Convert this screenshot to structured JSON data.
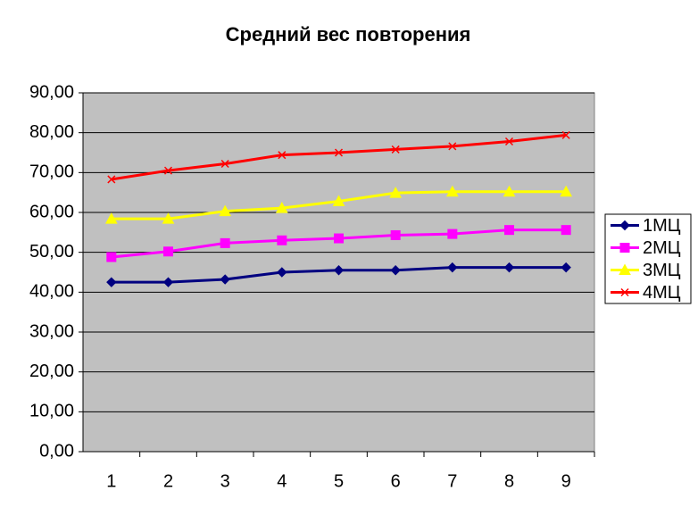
{
  "chart_data": {
    "type": "line",
    "title": "Средний вес повторения",
    "categories": [
      "1",
      "2",
      "3",
      "4",
      "5",
      "6",
      "7",
      "8",
      "9"
    ],
    "series": [
      {
        "name": "1МЦ",
        "color": "#000080",
        "marker": "diamond",
        "values": [
          42.5,
          42.5,
          43.2,
          45.0,
          45.5,
          45.5,
          46.2,
          46.2,
          46.2
        ]
      },
      {
        "name": "2МЦ",
        "color": "#FF00FF",
        "marker": "square",
        "values": [
          48.8,
          50.2,
          52.3,
          53.0,
          53.5,
          54.3,
          54.6,
          55.6,
          55.6
        ]
      },
      {
        "name": "3МЦ",
        "color": "#FFFF00",
        "marker": "triangle",
        "values": [
          58.4,
          58.4,
          60.3,
          61.1,
          62.8,
          64.9,
          65.2,
          65.2,
          65.2
        ]
      },
      {
        "name": "4МЦ",
        "color": "#FF0000",
        "marker": "x",
        "values": [
          68.3,
          70.5,
          72.2,
          74.4,
          75.0,
          75.8,
          76.6,
          77.8,
          79.4
        ]
      }
    ],
    "ylim": [
      0,
      90
    ],
    "yticks": [
      {
        "value": 0,
        "label": "0,00"
      },
      {
        "value": 10,
        "label": "10,00"
      },
      {
        "value": 20,
        "label": "20,00"
      },
      {
        "value": 30,
        "label": "30,00"
      },
      {
        "value": 40,
        "label": "40,00"
      },
      {
        "value": 50,
        "label": "50,00"
      },
      {
        "value": 60,
        "label": "60,00"
      },
      {
        "value": 70,
        "label": "70,00"
      },
      {
        "value": 80,
        "label": "80,00"
      },
      {
        "value": 90,
        "label": "90,00"
      }
    ],
    "grid": true,
    "legend": "right",
    "plot_background": "#C0C0C0"
  }
}
